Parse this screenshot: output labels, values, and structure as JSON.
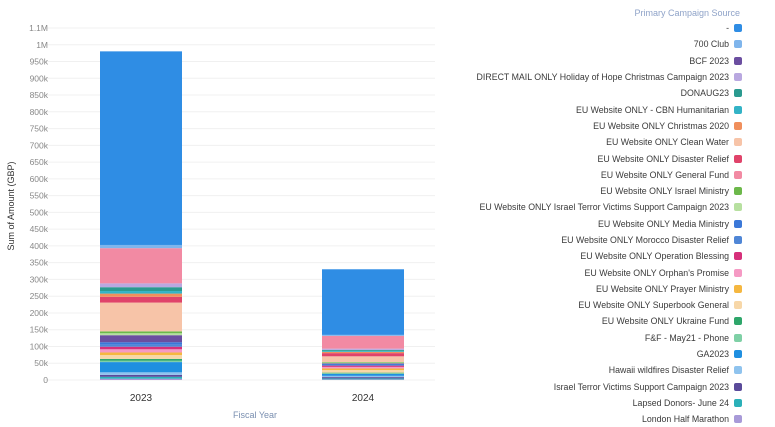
{
  "chart_data": {
    "type": "bar",
    "stacked": true,
    "xlabel": "Fiscal Year",
    "ylabel": "Sum of Amount (GBP)",
    "yticks": [
      "0",
      "50k",
      "100k",
      "150k",
      "200k",
      "250k",
      "300k",
      "350k",
      "400k",
      "450k",
      "500k",
      "550k",
      "600k",
      "650k",
      "700k",
      "750k",
      "800k",
      "850k",
      "900k",
      "950k",
      "1M",
      "1.1M"
    ],
    "ylim": [
      0,
      1100000
    ],
    "categories": [
      "2023",
      "2024"
    ],
    "legend": {
      "title": "Primary Campaign Source",
      "placement": "right",
      "items": [
        {
          "label": "-",
          "color": "#2f8de4"
        },
        {
          "label": "700 Club",
          "color": "#7fb5ec"
        },
        {
          "label": "BCF 2023",
          "color": "#6b4ea0"
        },
        {
          "label": "DIRECT MAIL ONLY Holiday of Hope Christmas Campaign 2023",
          "color": "#b9a8e0"
        },
        {
          "label": "DONAUG23",
          "color": "#2a9a8f"
        },
        {
          "label": "EU Website ONLY - CBN Humanitarian",
          "color": "#33b3c6"
        },
        {
          "label": "EU Website ONLY Christmas 2020",
          "color": "#f08f5c"
        },
        {
          "label": "EU Website ONLY Clean Water",
          "color": "#f7c4a8"
        },
        {
          "label": "EU Website ONLY Disaster Relief",
          "color": "#e0436a"
        },
        {
          "label": "EU Website ONLY General Fund",
          "color": "#f28aa3"
        },
        {
          "label": "EU Website ONLY Israel Ministry",
          "color": "#6cb84a"
        },
        {
          "label": "EU Website ONLY Israel Terror Victims Support Campaign 2023",
          "color": "#b7e0a0"
        },
        {
          "label": "EU Website ONLY Media Ministry",
          "color": "#3b78d8"
        },
        {
          "label": "EU Website ONLY Morocco Disaster Relief",
          "color": "#4f86d6"
        },
        {
          "label": "EU Website ONLY Operation Blessing",
          "color": "#d6307a"
        },
        {
          "label": "EU Website ONLY Orphan's Promise",
          "color": "#f59ac4"
        },
        {
          "label": "EU Website ONLY Prayer Ministry",
          "color": "#f5b740"
        },
        {
          "label": "EU Website ONLY Superbook General",
          "color": "#f7d7a8"
        },
        {
          "label": "EU Website ONLY Ukraine Fund",
          "color": "#2ea66a"
        },
        {
          "label": "F&F - May21 - Phone",
          "color": "#7fd0a6"
        },
        {
          "label": "GA2023",
          "color": "#1f8fe0"
        },
        {
          "label": "Hawaii wildfires Disaster Relief",
          "color": "#8fc3ee"
        },
        {
          "label": "Israel Terror Victims Support Campaign 2023",
          "color": "#5a4a9a"
        },
        {
          "label": "Lapsed Donors- June 24",
          "color": "#2bb0b8"
        },
        {
          "label": "London Half Marathon",
          "color": "#a89ad8"
        }
      ]
    },
    "series": [
      {
        "name": "London Half Marathon",
        "color": "#a89ad8",
        "values": [
          4000,
          2000
        ]
      },
      {
        "name": "Lapsed Donors- June 24",
        "color": "#2bb0b8",
        "values": [
          6000,
          3000
        ]
      },
      {
        "name": "Israel Terror Victims Support Campaign 2023",
        "color": "#5a4a9a",
        "values": [
          6000,
          4000
        ]
      },
      {
        "name": "Hawaii wildfires Disaster Relief",
        "color": "#8fc3ee",
        "values": [
          8000,
          4000
        ]
      },
      {
        "name": "GA2023",
        "color": "#1f8fe0",
        "values": [
          32000,
          6000
        ]
      },
      {
        "name": "F&F - May21 - Phone",
        "color": "#7fd0a6",
        "values": [
          4000,
          2000
        ]
      },
      {
        "name": "EU Website ONLY Ukraine Fund",
        "color": "#2ea66a",
        "values": [
          6000,
          2000
        ]
      },
      {
        "name": "EU Website ONLY Superbook General",
        "color": "#f7d7a8",
        "values": [
          12000,
          8000
        ]
      },
      {
        "name": "EU Website ONLY Prayer Ministry",
        "color": "#f5b740",
        "values": [
          8000,
          5000
        ]
      },
      {
        "name": "EU Website ONLY Orphan's Promise",
        "color": "#f59ac4",
        "values": [
          10000,
          5000
        ]
      },
      {
        "name": "EU Website ONLY Operation Blessing",
        "color": "#d6307a",
        "values": [
          8000,
          4000
        ]
      },
      {
        "name": "EU Website ONLY Morocco Disaster Relief",
        "color": "#4f86d6",
        "values": [
          6000,
          2000
        ]
      },
      {
        "name": "EU Website ONLY Media Ministry",
        "color": "#3b78d8",
        "values": [
          8000,
          3000
        ]
      },
      {
        "name": "BCF 2023",
        "color": "#6b4ea0",
        "values": [
          22000,
          2000
        ]
      },
      {
        "name": "EU Website ONLY Israel Terror Victims Support Campaign 2023",
        "color": "#b7e0a0",
        "values": [
          6000,
          2000
        ]
      },
      {
        "name": "EU Website ONLY Israel Ministry",
        "color": "#6cb84a",
        "values": [
          6000,
          2000
        ]
      },
      {
        "name": "EU Website ONLY Clean Water",
        "color": "#f7c4a8",
        "values": [
          90000,
          18000
        ]
      },
      {
        "name": "EU Website ONLY Disaster Relief",
        "color": "#e0436a",
        "values": [
          18000,
          10000
        ]
      },
      {
        "name": "EU Website ONLY Christmas 2020",
        "color": "#f08f5c",
        "values": [
          10000,
          4000
        ]
      },
      {
        "name": "EU Website ONLY - CBN Humanitarian",
        "color": "#33b3c6",
        "values": [
          8000,
          3000
        ]
      },
      {
        "name": "DONAUG23",
        "color": "#2a9a8f",
        "values": [
          12000,
          3000
        ]
      },
      {
        "name": "DIRECT MAIL ONLY Holiday of Hope Christmas Campaign 2023",
        "color": "#b9a8e0",
        "values": [
          12000,
          4000
        ]
      },
      {
        "name": "EU Website ONLY General Fund",
        "color": "#f28aa3",
        "values": [
          110000,
          40000
        ]
      },
      {
        "name": "700 Club",
        "color": "#7fb5ec",
        "values": [
          10000,
          3000
        ]
      },
      {
        "name": "-",
        "color": "#2f8de4",
        "values": [
          605000,
          205000
        ]
      }
    ]
  }
}
